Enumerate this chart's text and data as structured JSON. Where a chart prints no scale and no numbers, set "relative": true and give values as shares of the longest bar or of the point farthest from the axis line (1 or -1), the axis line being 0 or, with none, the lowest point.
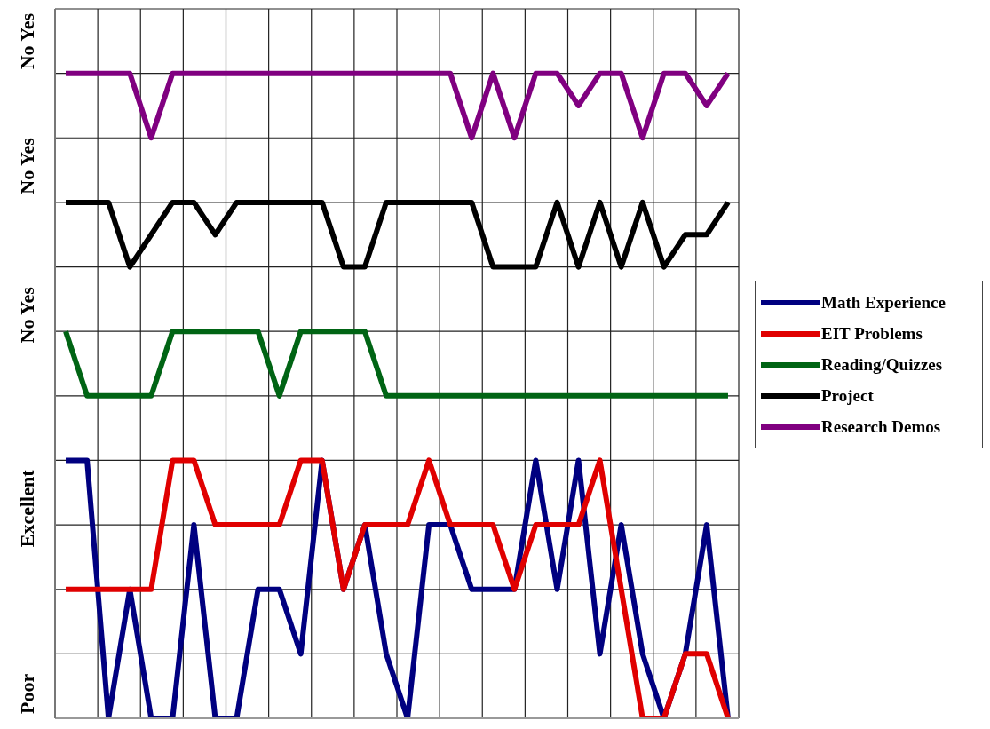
{
  "chart_data": {
    "type": "line",
    "relative": true,
    "ylabel": "Poor                          Excellent                          No Yes                   No Yes              No Yes",
    "categories": [
      null,
      null,
      null,
      null,
      null,
      null,
      null,
      null,
      null,
      null,
      null,
      null,
      null,
      null,
      null,
      null,
      null,
      null,
      null,
      null,
      null,
      null,
      null,
      null,
      null,
      null,
      null,
      null,
      null,
      null,
      null,
      null
    ],
    "series": [
      {
        "name": "Math Experience",
        "color": "#000080",
        "values": [
          0.4,
          0.4,
          0,
          0.2,
          0,
          0,
          0.3,
          0,
          0,
          0.2,
          0.2,
          0.1,
          0.4,
          0.2,
          0.3,
          0.1,
          0,
          0.3,
          0.3,
          0.2,
          0.2,
          0.2,
          0.4,
          0.2,
          0.4,
          0.1,
          0.3,
          0.1,
          0,
          0.1,
          0.3,
          0
        ]
      },
      {
        "name": "EIT Problems",
        "color": "#e00000",
        "values": [
          0.2,
          0.2,
          0.2,
          0.2,
          0.2,
          0.4,
          0.4,
          0.3,
          0.3,
          0.3,
          0.3,
          0.4,
          0.4,
          0.2,
          0.3,
          0.3,
          0.3,
          0.4,
          0.3,
          0.3,
          0.3,
          0.2,
          0.3,
          0.3,
          0.3,
          0.4,
          0.2,
          0,
          0,
          0.1,
          0.1,
          0
        ]
      },
      {
        "name": "Reading/Quizzes",
        "color": "#006414",
        "values": [
          0.6,
          0.5,
          0.5,
          0.5,
          0.5,
          0.6,
          0.6,
          0.6,
          0.6,
          0.6,
          0.5,
          0.6,
          0.6,
          0.6,
          0.6,
          0.5,
          0.5,
          0.5,
          0.5,
          0.5,
          0.5,
          0.5,
          0.5,
          0.5,
          0.5,
          0.5,
          0.5,
          0.5,
          0.5,
          0.5,
          0.5,
          0.5
        ]
      },
      {
        "name": "Project",
        "color": "#000000",
        "values": [
          0.8,
          0.8,
          0.8,
          0.7,
          0.75,
          0.8,
          0.8,
          0.75,
          0.8,
          0.8,
          0.8,
          0.8,
          0.8,
          0.7,
          0.7,
          0.8,
          0.8,
          0.8,
          0.8,
          0.8,
          0.7,
          0.7,
          0.7,
          0.8,
          0.7,
          0.8,
          0.7,
          0.8,
          0.7,
          0.75,
          0.75,
          0.8
        ]
      },
      {
        "name": "Research Demos",
        "color": "#800080",
        "values": [
          1,
          1,
          1,
          1,
          0.9,
          1,
          1,
          1,
          1,
          1,
          1,
          1,
          1,
          1,
          1,
          1,
          1,
          1,
          1,
          0.9,
          1,
          0.9,
          1,
          1,
          0.95,
          1,
          1,
          0.9,
          1,
          1,
          0.95,
          1
        ]
      }
    ],
    "grid": true,
    "legend": "right",
    "marker": "none",
    "line_style": "solid"
  }
}
